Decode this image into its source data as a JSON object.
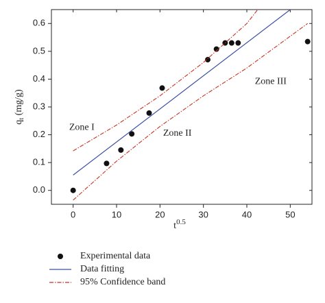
{
  "chart_data": {
    "type": "scatter",
    "xlabel": "t",
    "xlabel_sup": "0.5",
    "ylabel": "q",
    "ylabel_sub": "t",
    "ylabel_unit": "(mg/g)",
    "xlim": [
      -5,
      55
    ],
    "xticks": [
      0,
      10,
      20,
      30,
      40,
      50
    ],
    "ylim": [
      -0.05,
      0.65
    ],
    "yticks": [
      {
        "value": 0,
        "label": "0.0"
      },
      0.1,
      0.2,
      0.3,
      0.4,
      0.5,
      0.6
    ],
    "annotations": [
      {
        "text": "Zone I",
        "x": 2,
        "y": 0.225
      },
      {
        "text": "Zone II",
        "x": 24,
        "y": 0.205
      },
      {
        "text": "Zone III",
        "x": 45.5,
        "y": 0.39
      }
    ],
    "series": [
      {
        "name": "Experimental data",
        "kind": "points",
        "color": "#111111",
        "x": [
          0,
          7.7,
          11,
          13.5,
          17.5,
          20.5,
          31,
          33,
          35,
          36.5,
          38,
          54
        ],
        "values": [
          0,
          0.097,
          0.145,
          0.203,
          0.278,
          0.368,
          0.47,
          0.508,
          0.53,
          0.53,
          0.53,
          0.535
        ]
      },
      {
        "name": "Data fitting",
        "kind": "line",
        "color": "#3b4fa3",
        "x": [
          0,
          50
        ],
        "values": [
          0.055,
          0.65
        ]
      },
      {
        "name": "95% Confidence band",
        "kind": "band",
        "color": "#c8321e",
        "upper": {
          "x": [
            0,
            10,
            20,
            30,
            40,
            42.5
          ],
          "values": [
            0.142,
            0.235,
            0.34,
            0.46,
            0.6,
            0.65
          ]
        },
        "lower": {
          "x": [
            0,
            10,
            20,
            30,
            40,
            54
          ],
          "values": [
            -0.035,
            0.105,
            0.23,
            0.34,
            0.44,
            0.6
          ]
        }
      }
    ]
  }
}
